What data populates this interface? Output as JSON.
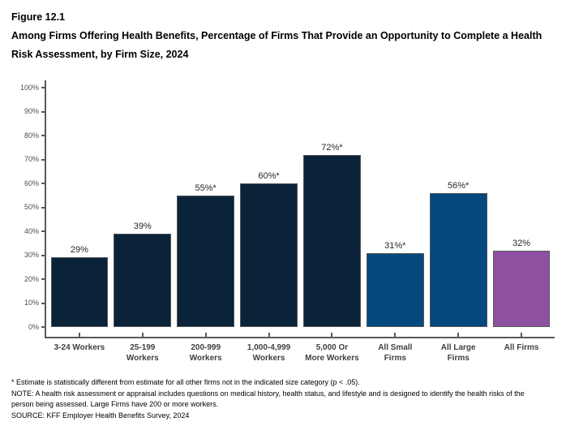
{
  "figure": {
    "label": "Figure 12.1",
    "title": "Among Firms Offering Health Benefits, Percentage of Firms That Provide an Opportunity to Complete a Health Risk Assessment, by Firm Size, 2024"
  },
  "chart_data": {
    "type": "bar",
    "title": "Among Firms Offering Health Benefits, Percentage of Firms That Provide an Opportunity to Complete a Health Risk Assessment, by Firm Size, 2024",
    "categories": [
      "3-24 Workers",
      "25-199 Workers",
      "200-999 Workers",
      "1,000-4,999 Workers",
      "5,000 Or More Workers",
      "All Small Firms",
      "All Large Firms",
      "All Firms"
    ],
    "categories_display": [
      "3-24 Workers",
      "25-199\nWorkers",
      "200-999\nWorkers",
      "1,000-4,999\nWorkers",
      "5,000 Or\nMore Workers",
      "All Small\nFirms",
      "All Large\nFirms",
      "All Firms"
    ],
    "values": [
      29,
      39,
      55,
      60,
      72,
      31,
      56,
      32
    ],
    "value_labels": [
      "29%",
      "39%",
      "55%*",
      "60%*",
      "72%*",
      "31%*",
      "56%*",
      "32%"
    ],
    "bar_color_keys": [
      "navy",
      "navy",
      "navy",
      "navy",
      "navy",
      "blue",
      "blue",
      "purple"
    ],
    "xlabel": "",
    "ylabel": "",
    "ylim": [
      0,
      100
    ],
    "ytick_values": [
      0,
      10,
      20,
      30,
      40,
      50,
      60,
      70,
      80,
      90,
      100
    ],
    "ytick_labels": [
      "0%",
      "10%",
      "20%",
      "30%",
      "40%",
      "50%",
      "60%",
      "70%",
      "80%",
      "90%",
      "100%"
    ],
    "grid": false,
    "legend": false
  },
  "colors": {
    "navy": "#0b2338",
    "blue": "#03497d",
    "purple": "#8e51a1",
    "axis": "#58595b",
    "tick_label": "#4d4d4d",
    "value_label": "#262626",
    "category_label": "#404040"
  },
  "footnotes": [
    "* Estimate is statistically different from estimate for all other firms not in the indicated size category (p < .05).",
    "NOTE: A health risk assessment or appraisal includes questions on medical history, health status, and lifestyle and is designed to identify the health risks of the person being assessed.  Large Firms have 200 or more workers.",
    "SOURCE: KFF Employer Health Benefits Survey, 2024"
  ]
}
